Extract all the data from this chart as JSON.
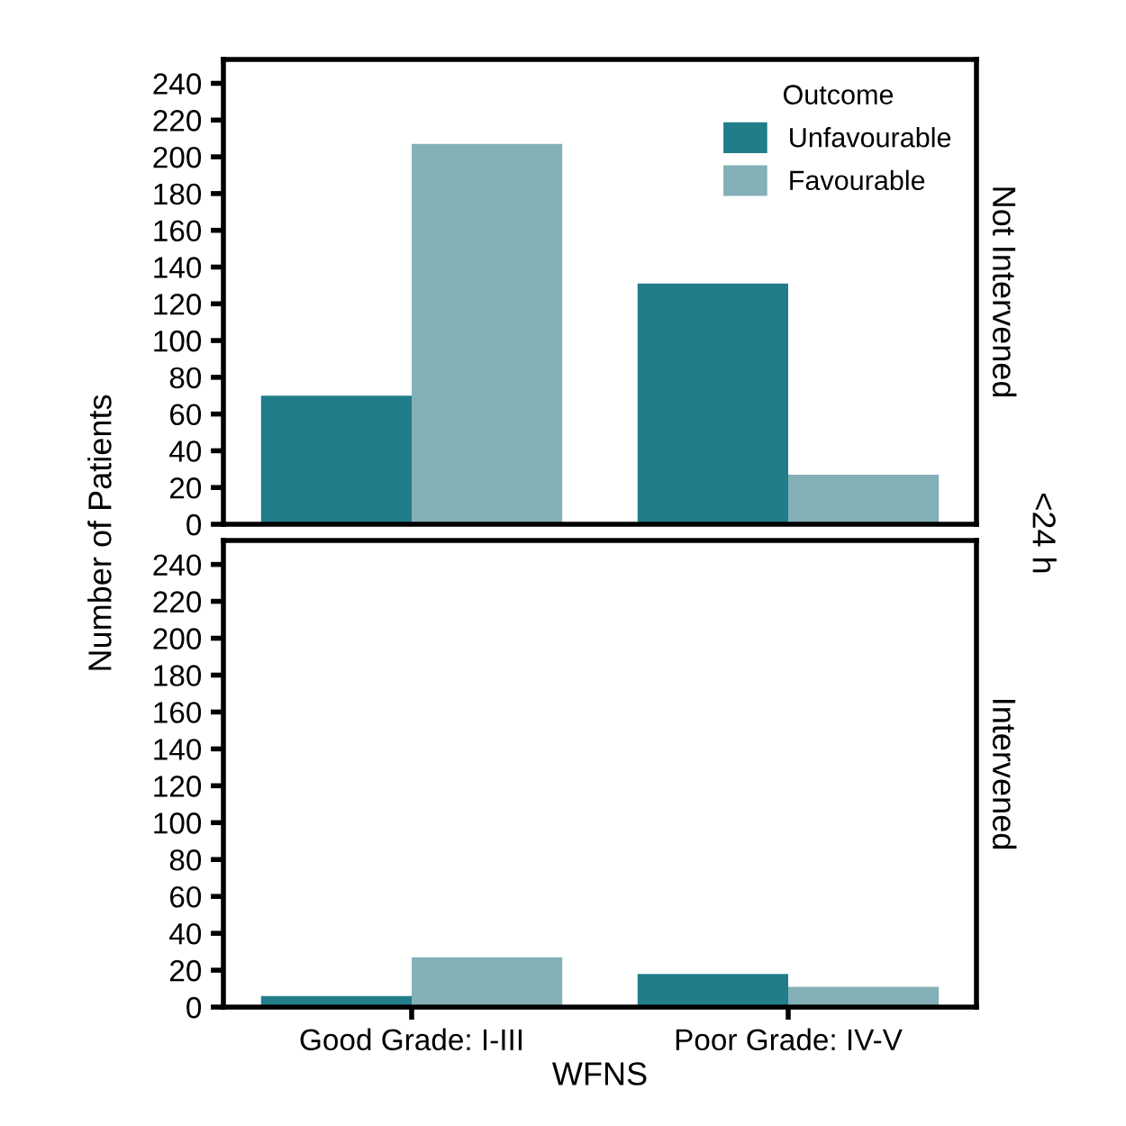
{
  "chart_data": [
    {
      "type": "bar",
      "y2label": "Not Intervened",
      "ylabel": "Number of Patients",
      "annotations": [
        "<24 h"
      ],
      "legend_title": "Outcome",
      "legend": "top right",
      "tick_labels": "y",
      "categories": [
        null,
        null
      ],
      "series": [
        {
          "name": "Unfavourable",
          "color": "#217d8a",
          "values": [
            70,
            131
          ]
        },
        {
          "name": "Favourable",
          "color": "#84b0b8",
          "values": [
            207,
            27
          ]
        }
      ],
      "ylim": [
        0,
        253
      ],
      "yticks": [
        0,
        20,
        40,
        60,
        80,
        100,
        120,
        140,
        160,
        180,
        200,
        220,
        240
      ]
    },
    {
      "type": "bar",
      "y2label": "Intervened",
      "xlabel": "WFNS",
      "categories": [
        "Good Grade: I-III",
        "Poor Grade: IV-V"
      ],
      "series": [
        {
          "color": "#217d8a",
          "values": [
            6,
            18
          ]
        },
        {
          "color": "#84b0b8",
          "values": [
            27,
            11
          ]
        }
      ],
      "ylim": [
        0,
        253
      ],
      "yticks": [
        0,
        20,
        40,
        60,
        80,
        100,
        120,
        140,
        160,
        180,
        200,
        220,
        240
      ]
    }
  ]
}
